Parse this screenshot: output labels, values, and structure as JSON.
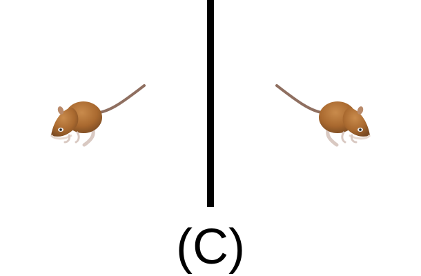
{
  "figure": {
    "panel_label": "(C)",
    "left_image_icon": "mouse-facing-left",
    "right_image_icon": "mouse-facing-right",
    "divider_color": "#000000",
    "mouse_fur_color": "#a9692f"
  }
}
